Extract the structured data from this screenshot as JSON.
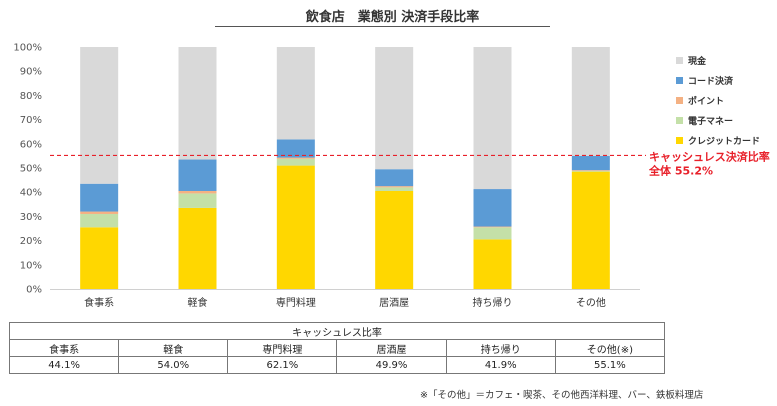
{
  "chart_data": {
    "type": "bar",
    "stacked": true,
    "title": "飲食店　業態別 決済手段比率",
    "categories": [
      "食事系",
      "軽食",
      "専門料理",
      "居酒屋",
      "持ち帰り",
      "その他"
    ],
    "ylim": [
      0,
      100
    ],
    "y_ticks": [
      "0%",
      "10%",
      "20%",
      "30%",
      "40%",
      "50%",
      "60%",
      "70%",
      "80%",
      "90%",
      "100%"
    ],
    "series": [
      {
        "name": "クレジットカード",
        "color": "#ffd700",
        "values": [
          25.5,
          33.5,
          51.0,
          40.5,
          20.5,
          48.5
        ]
      },
      {
        "name": "電子マネー",
        "color": "#c4e0a8",
        "values": [
          5.5,
          6.0,
          2.8,
          1.5,
          5.0,
          0.3
        ]
      },
      {
        "name": "ポイント",
        "color": "#f4b183",
        "values": [
          1.0,
          1.0,
          0.5,
          0.5,
          0.3,
          0.3
        ]
      },
      {
        "name": "コード決済",
        "color": "#5b9bd5",
        "values": [
          11.5,
          13.0,
          7.5,
          7.0,
          15.5,
          5.9
        ]
      },
      {
        "name": "現金",
        "color": "#d9d9d9",
        "values": [
          56.5,
          46.5,
          38.2,
          50.5,
          58.7,
          45.0
        ]
      }
    ],
    "legend_order": [
      "現金",
      "コード決済",
      "ポイント",
      "電子マネー",
      "クレジットカード"
    ],
    "legend_position": "right",
    "reference_line": {
      "value": 55.2,
      "color": "#e8202a",
      "style": "dashed",
      "label_line1": "キャッシュレス決済比率",
      "label_line2": "全体 55.2%"
    }
  },
  "table": {
    "title": "キャッシュレス比率",
    "headers": [
      "食事系",
      "軽食",
      "専門料理",
      "居酒屋",
      "持ち帰り",
      "その他(※)"
    ],
    "values": [
      "44.1%",
      "54.0%",
      "62.1%",
      "49.9%",
      "41.9%",
      "55.1%"
    ]
  },
  "footnote": "※「その他」＝カフェ・喫茶、その他西洋料理、バー、鉄板料理店"
}
